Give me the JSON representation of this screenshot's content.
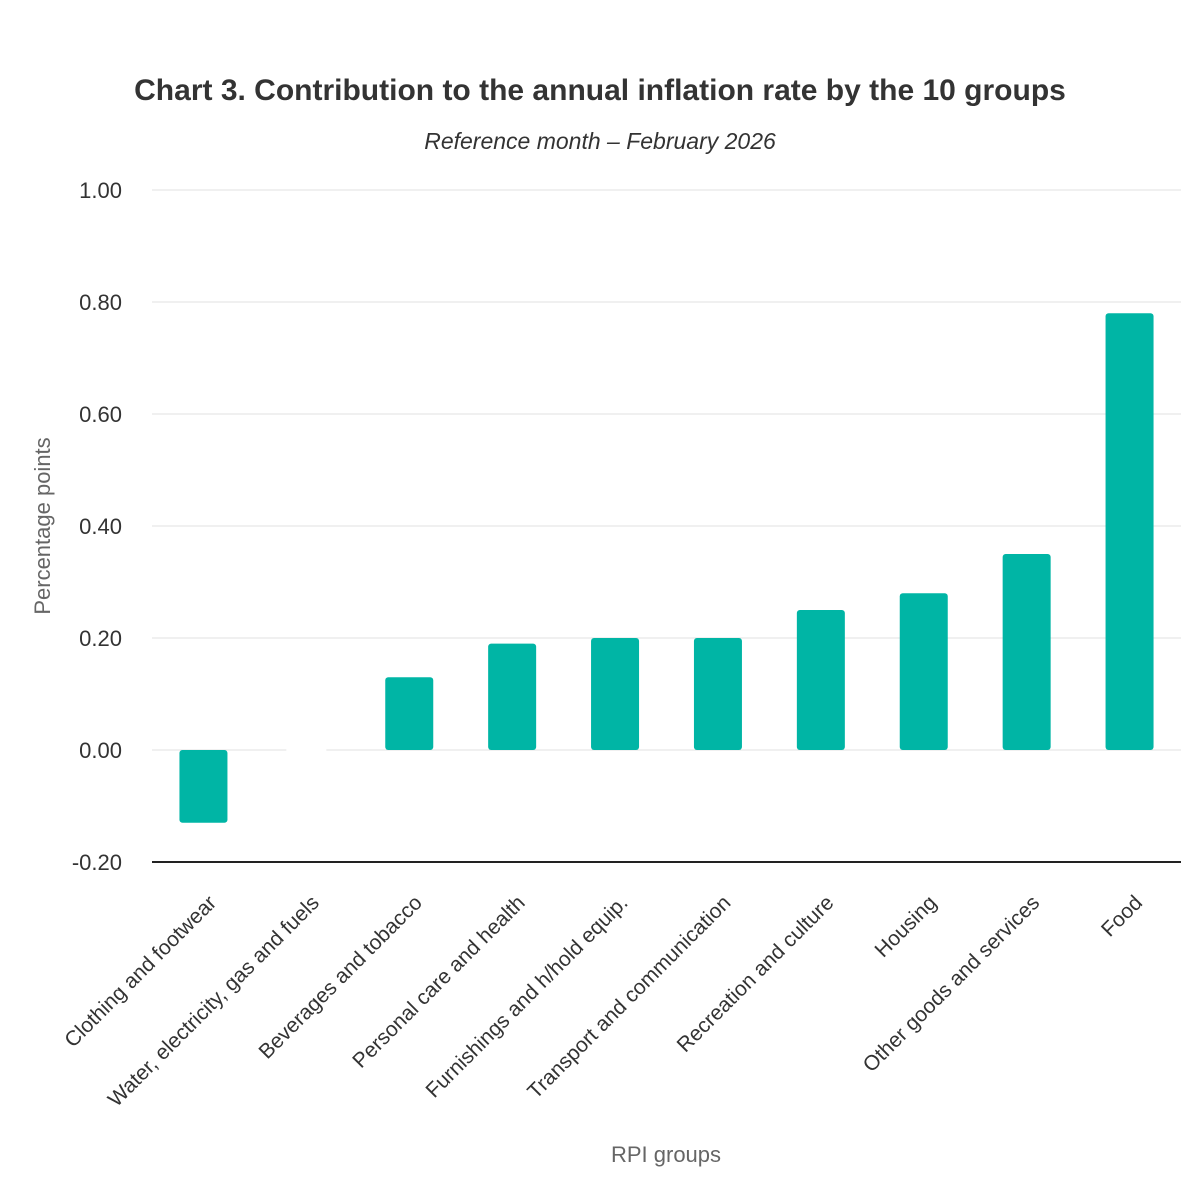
{
  "chart_data": {
    "type": "bar",
    "title": "Chart 3. Contribution to the annual inflation rate by the 10 groups",
    "subtitle": "Reference month – February 2026",
    "xlabel": "RPI groups",
    "ylabel": "Percentage points",
    "ylim": [
      -0.2,
      1.0
    ],
    "yticks": [
      "1.00",
      "0.80",
      "0.60",
      "0.40",
      "0.20",
      "0.00",
      "-0.20"
    ],
    "ytick_values": [
      1.0,
      0.8,
      0.6,
      0.4,
      0.2,
      0.0,
      -0.2
    ],
    "categories": [
      "Clothing and footwear",
      "Water, electricity, gas and fuels",
      "Beverages and tobacco",
      "Personal care and health",
      "Furnishings and h/hold equip.",
      "Transport and communication",
      "Recreation and culture",
      "Housing",
      "Other goods and services",
      "Food"
    ],
    "values": [
      -0.13,
      0.0,
      0.13,
      0.19,
      0.2,
      0.2,
      0.25,
      0.28,
      0.35,
      0.78
    ],
    "bar_color": "#00b5a5",
    "grid": true
  }
}
